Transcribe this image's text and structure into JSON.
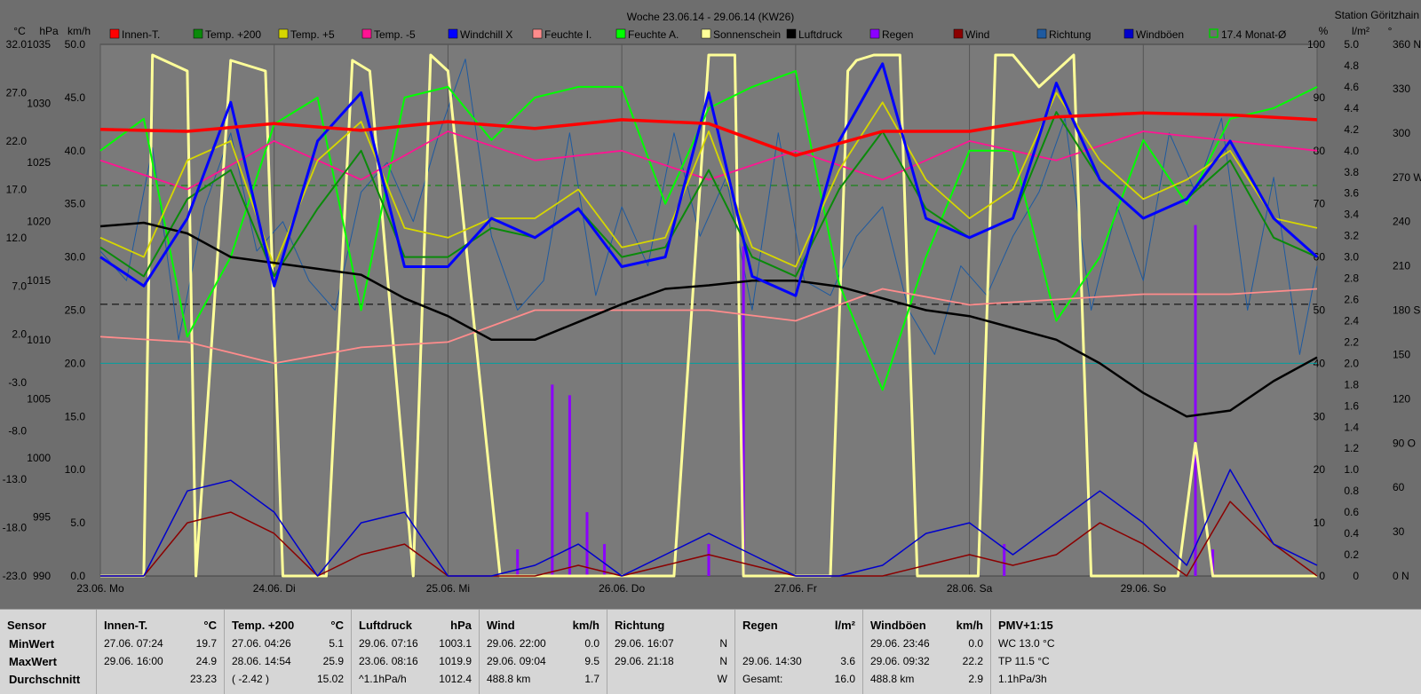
{
  "header": {
    "title": "Woche 23.06.14 - 29.06.14 (KW26)",
    "station": "Station Göritzhain"
  },
  "chart_data": {
    "type": "line",
    "title": "Woche 23.06.14 - 29.06.14 (KW26)",
    "x_ticks": [
      "23.06. Mo",
      "24.06. Di",
      "25.06. Mi",
      "26.06. Do",
      "27.06. Fr",
      "28.06. Sa",
      "29.06. So"
    ],
    "x_range": [
      0,
      7
    ],
    "left_axes": [
      {
        "unit": "°C",
        "ticks": [
          "32.0",
          "27.0",
          "22.0",
          "17.0",
          "12.0",
          "7.0",
          "2.0",
          "-3.0",
          "-8.0",
          "-13.0",
          "-18.0",
          "-23.0"
        ]
      },
      {
        "unit": "hPa",
        "ticks": [
          "1035",
          "1030",
          "1025",
          "1020",
          "1015",
          "1010",
          "1005",
          "1000",
          "995",
          "990"
        ]
      },
      {
        "unit": "km/h",
        "ticks": [
          "50.0",
          "45.0",
          "40.0",
          "35.0",
          "30.0",
          "25.0",
          "20.0",
          "15.0",
          "10.0",
          "5.0",
          "0.0"
        ]
      }
    ],
    "right_axes": [
      {
        "unit": "%",
        "ticks": [
          "100",
          "90",
          "80",
          "70",
          "60",
          "50",
          "40",
          "30",
          "20",
          "10",
          "0"
        ]
      },
      {
        "unit": "l/m²",
        "ticks": [
          "5.0",
          "4.8",
          "4.6",
          "4.4",
          "4.2",
          "4.0",
          "3.8",
          "3.6",
          "3.4",
          "3.2",
          "3.0",
          "2.8",
          "2.6",
          "2.4",
          "2.2",
          "2.0",
          "1.8",
          "1.6",
          "1.4",
          "1.2",
          "1.0",
          "0.8",
          "0.6",
          "0.4",
          "0.2",
          "0"
        ]
      },
      {
        "unit": "°",
        "ticks": [
          "360 N",
          "330",
          "300",
          "270 W",
          "240",
          "210",
          "180 S",
          "150",
          "120",
          "90 O",
          "60",
          "30",
          "0 N"
        ]
      }
    ],
    "legend": [
      {
        "name": "Innen-T.",
        "color": "#ff0000"
      },
      {
        "name": "Temp. +200",
        "color": "#0a8a0a"
      },
      {
        "name": "Temp. +5",
        "color": "#d6d600"
      },
      {
        "name": "Temp. -5",
        "color": "#ff1493"
      },
      {
        "name": "Windchill X",
        "color": "#0000ff"
      },
      {
        "name": "Feuchte I.",
        "color": "#ff8c8c"
      },
      {
        "name": "Feuchte A.",
        "color": "#00ff00"
      },
      {
        "name": "Sonnenschein",
        "color": "#ffff99"
      },
      {
        "name": "Luftdruck",
        "color": "#000000"
      },
      {
        "name": "Regen",
        "color": "#8b00ff"
      },
      {
        "name": "Wind",
        "color": "#8b0000"
      },
      {
        "name": "Richtung",
        "color": "#1e5aa0"
      },
      {
        "name": "Windböen",
        "color": "#0000cc"
      },
      {
        "name": "17.4 Monat-Ø",
        "color": "#00cc00"
      }
    ],
    "reference_lines": [
      {
        "label": "17.4 Monat-Ø",
        "axis": "°C",
        "value": 17.4,
        "color": "#008800"
      },
      {
        "axis": "hPa",
        "value": 1013.0,
        "color": "#000000"
      },
      {
        "axis": "km/h",
        "value": 20.0,
        "color": "#00a0a0"
      }
    ],
    "series": [
      {
        "name": "Innen-T.",
        "axis": "°C",
        "x": [
          0,
          0.5,
          1,
          1.5,
          2,
          2.5,
          3,
          3.5,
          4,
          4.5,
          5,
          5.5,
          6,
          6.5,
          7
        ],
        "values": [
          23.2,
          23.0,
          23.8,
          23.1,
          24.0,
          23.3,
          24.2,
          23.8,
          20.5,
          23.0,
          23.0,
          24.5,
          24.9,
          24.7,
          24.2
        ]
      },
      {
        "name": "Temp. +200",
        "axis": "°C",
        "x": [
          0,
          0.25,
          0.5,
          0.75,
          1,
          1.25,
          1.5,
          1.75,
          2,
          2.25,
          2.5,
          2.75,
          3,
          3.25,
          3.5,
          3.75,
          4,
          4.25,
          4.5,
          4.75,
          5,
          5.25,
          5.5,
          5.75,
          6,
          6.25,
          6.5,
          6.75,
          7
        ],
        "values": [
          11,
          8,
          16,
          19,
          8,
          15,
          21,
          10,
          10,
          13,
          12,
          15,
          10,
          11,
          19,
          10,
          8,
          17,
          23,
          15,
          12,
          14,
          25,
          18,
          14,
          16,
          20,
          12,
          10
        ]
      },
      {
        "name": "Temp. +5",
        "axis": "°C",
        "x": [
          0,
          0.25,
          0.5,
          0.75,
          1,
          1.25,
          1.5,
          1.75,
          2,
          2.25,
          2.5,
          2.75,
          3,
          3.25,
          3.5,
          3.75,
          4,
          4.25,
          4.5,
          4.75,
          5,
          5.25,
          5.5,
          5.75,
          6,
          6.25,
          6.5,
          6.75,
          7
        ],
        "values": [
          12,
          10,
          20,
          22,
          9,
          20,
          24,
          13,
          12,
          14,
          14,
          17,
          11,
          12,
          23,
          11,
          9,
          19,
          26,
          18,
          14,
          17,
          27,
          20,
          16,
          18,
          21,
          14,
          13
        ]
      },
      {
        "name": "Temp. -5",
        "axis": "°C",
        "x": [
          0,
          0.5,
          1,
          1.5,
          2,
          2.5,
          3,
          3.5,
          4,
          4.5,
          5,
          5.5,
          6,
          6.5,
          7
        ],
        "values": [
          20,
          17,
          22,
          18,
          23,
          20,
          21,
          18,
          21,
          18,
          22,
          20,
          23,
          22,
          21
        ]
      },
      {
        "name": "Windchill X",
        "axis": "°C",
        "x": [
          0,
          0.25,
          0.5,
          0.75,
          1,
          1.25,
          1.5,
          1.75,
          2,
          2.25,
          2.5,
          2.75,
          3,
          3.25,
          3.5,
          3.75,
          4,
          4.25,
          4.5,
          4.75,
          5,
          5.25,
          5.5,
          5.75,
          6,
          6.25,
          6.5,
          6.75,
          7
        ],
        "values": [
          10,
          7,
          14,
          26,
          7,
          22,
          27,
          9,
          9,
          14,
          12,
          15,
          9,
          10,
          27,
          8,
          6,
          22,
          30,
          14,
          12,
          14,
          28,
          18,
          14,
          16,
          22,
          14,
          10
        ]
      },
      {
        "name": "Feuchte I.",
        "axis": "%",
        "x": [
          0,
          0.5,
          1,
          1.5,
          2,
          2.5,
          3,
          3.5,
          4,
          4.5,
          5,
          5.5,
          6,
          6.5,
          7
        ],
        "values": [
          45,
          44,
          40,
          43,
          44,
          50,
          50,
          50,
          48,
          54,
          51,
          52,
          53,
          53,
          54
        ]
      },
      {
        "name": "Feuchte A.",
        "axis": "%",
        "x": [
          0,
          0.25,
          0.5,
          0.75,
          1,
          1.25,
          1.5,
          1.75,
          2,
          2.25,
          2.5,
          2.75,
          3,
          3.25,
          3.5,
          3.75,
          4,
          4.25,
          4.5,
          4.75,
          5,
          5.25,
          5.5,
          5.75,
          6,
          6.25,
          6.5,
          6.75,
          7
        ],
        "values": [
          80,
          86,
          45,
          60,
          85,
          90,
          50,
          90,
          92,
          82,
          90,
          92,
          92,
          70,
          88,
          92,
          95,
          55,
          35,
          60,
          80,
          80,
          48,
          60,
          82,
          70,
          86,
          88,
          92
        ]
      },
      {
        "name": "Sonnenschein",
        "axis": "%",
        "x": [
          0,
          0.25,
          0.3,
          0.5,
          0.55,
          0.75,
          0.95,
          1.05,
          1.3,
          1.45,
          1.55,
          1.8,
          1.9,
          2.0,
          2.3,
          2.45,
          2.5,
          3.2,
          3.3,
          3.5,
          3.65,
          3.7,
          4.2,
          4.3,
          4.35,
          4.45,
          4.6,
          4.7,
          5.0,
          5.05,
          5.15,
          5.25,
          5.4,
          5.6,
          5.7,
          6.2,
          6.3,
          6.4,
          7
        ],
        "values": [
          0,
          0,
          98,
          95,
          0,
          97,
          95,
          0,
          0,
          97,
          95,
          0,
          98,
          95,
          0,
          0,
          0,
          0,
          0,
          98,
          98,
          0,
          0,
          95,
          97,
          98,
          98,
          0,
          0,
          0,
          98,
          98,
          92,
          98,
          0,
          0,
          25,
          0,
          0
        ]
      },
      {
        "name": "Luftdruck",
        "axis": "hPa",
        "x": [
          0,
          0.25,
          0.5,
          0.75,
          1,
          1.25,
          1.5,
          1.75,
          2,
          2.25,
          2.5,
          2.75,
          3,
          3.25,
          3.5,
          3.75,
          4,
          4.25,
          4.5,
          4.75,
          5,
          5.25,
          5.5,
          5.75,
          6,
          6.25,
          6.5,
          6.75,
          7
        ],
        "values": [
          1019.6,
          1019.9,
          1019.0,
          1017.0,
          1016.5,
          1016.0,
          1015.5,
          1013.5,
          1012.0,
          1010.0,
          1010.0,
          1011.5,
          1013.0,
          1014.3,
          1014.6,
          1015.0,
          1015.0,
          1014.5,
          1013.5,
          1012.5,
          1012.0,
          1011.0,
          1010.0,
          1008.0,
          1005.5,
          1003.5,
          1004.0,
          1006.5,
          1008.5
        ]
      },
      {
        "name": "Regen",
        "axis": "l/m²",
        "x": [
          2.2,
          2.3,
          2.4,
          2.5,
          2.6,
          2.7,
          2.8,
          2.9,
          3.0,
          3.1,
          3.2,
          3.3,
          3.4,
          3.5,
          3.6,
          3.7,
          3.8,
          3.9,
          4.0,
          4.1,
          4.2,
          4.3,
          4.4,
          4.5,
          4.6,
          4.7,
          4.8,
          4.9,
          5.0,
          5.1,
          5.2,
          5.3,
          5.4,
          5.5,
          5.6,
          5.7,
          5.8,
          5.9,
          6.0,
          6.1,
          6.2,
          6.3,
          6.4,
          6.5
        ],
        "values": [
          0,
          0,
          0.25,
          0,
          1.8,
          1.7,
          0.6,
          0.3,
          0,
          0,
          0,
          0,
          0,
          0.3,
          0,
          3.1,
          0,
          0,
          0,
          0,
          0,
          0,
          0,
          0,
          0,
          0,
          0,
          0,
          0,
          0,
          0.3,
          0,
          0,
          0,
          0,
          0,
          0,
          0,
          0,
          0,
          0,
          3.3,
          0.25,
          0
        ]
      },
      {
        "name": "Wind",
        "axis": "km/h",
        "x": [
          0,
          0.25,
          0.5,
          0.75,
          1,
          1.25,
          1.5,
          1.75,
          2,
          2.25,
          2.5,
          2.75,
          3,
          3.25,
          3.5,
          3.75,
          4,
          4.25,
          4.5,
          4.75,
          5,
          5.25,
          5.5,
          5.75,
          6,
          6.25,
          6.5,
          6.75,
          7
        ],
        "values": [
          0,
          0,
          5,
          6,
          4,
          0,
          2,
          3,
          0,
          0,
          0,
          1,
          0,
          1,
          2,
          1,
          0,
          0,
          0,
          1,
          2,
          1,
          2,
          5,
          3,
          0,
          7,
          3,
          0
        ]
      },
      {
        "name": "Windböen",
        "axis": "km/h",
        "x": [
          0,
          0.25,
          0.5,
          0.75,
          1,
          1.25,
          1.5,
          1.75,
          2,
          2.25,
          2.5,
          2.75,
          3,
          3.25,
          3.5,
          3.75,
          4,
          4.25,
          4.5,
          4.75,
          5,
          5.25,
          5.5,
          5.75,
          6,
          6.25,
          6.5,
          6.75,
          7
        ],
        "values": [
          0,
          0,
          8,
          9,
          6,
          0,
          5,
          6,
          0,
          0,
          1,
          3,
          0,
          2,
          4,
          2,
          0,
          0,
          1,
          4,
          5,
          2,
          5,
          8,
          5,
          1,
          10,
          3,
          1
        ]
      },
      {
        "name": "Richtung",
        "axis": "°",
        "x": [
          0,
          0.15,
          0.3,
          0.45,
          0.6,
          0.75,
          0.9,
          1.05,
          1.2,
          1.35,
          1.5,
          1.65,
          1.8,
          1.95,
          2.1,
          2.25,
          2.4,
          2.55,
          2.7,
          2.85,
          3.0,
          3.15,
          3.3,
          3.45,
          3.6,
          3.75,
          3.9,
          4.05,
          4.2,
          4.35,
          4.5,
          4.65,
          4.8,
          4.95,
          5.1,
          5.25,
          5.4,
          5.55,
          5.7,
          5.85,
          6.0,
          6.15,
          6.3,
          6.45,
          6.6,
          6.75,
          6.9,
          7
        ],
        "values": [
          220,
          200,
          290,
          160,
          250,
          300,
          220,
          240,
          200,
          180,
          260,
          280,
          240,
          300,
          350,
          230,
          180,
          200,
          300,
          190,
          250,
          210,
          300,
          230,
          270,
          180,
          300,
          200,
          190,
          230,
          250,
          180,
          150,
          210,
          190,
          230,
          260,
          310,
          180,
          250,
          200,
          300,
          260,
          310,
          180,
          270,
          150,
          210
        ]
      }
    ]
  },
  "stats": {
    "sensor": {
      "head": "Sensor",
      "rows": [
        "MinWert",
        "MaxWert",
        "Durchschnitt"
      ]
    },
    "innen": {
      "head": "Innen-T.",
      "unit": "°C",
      "rows": [
        [
          "27.06.  07:24",
          "19.7"
        ],
        [
          "29.06.  16:00",
          "24.9"
        ],
        [
          "",
          "23.23"
        ]
      ]
    },
    "temp200": {
      "head": "Temp. +200",
      "unit": "°C",
      "rows": [
        [
          "27.06.  04:26",
          "5.1"
        ],
        [
          "28.06.  14:54",
          "25.9"
        ],
        [
          "( -2.42 )",
          "15.02"
        ]
      ]
    },
    "luftdruck": {
      "head": "Luftdruck",
      "unit": "hPa",
      "rows": [
        [
          "29.06.  07:16",
          "1003.1"
        ],
        [
          "23.06.  08:16",
          "1019.9"
        ],
        [
          "^1.1hPa/h",
          "1012.4"
        ]
      ]
    },
    "wind": {
      "head": "Wind",
      "unit": "km/h",
      "rows": [
        [
          "29.06.  22:00",
          "0.0"
        ],
        [
          "29.06.  09:04",
          "9.5"
        ],
        [
          "488.8 km",
          "1.7"
        ]
      ]
    },
    "richtung": {
      "head": "Richtung",
      "rows": [
        [
          "29.06.  16:07",
          "N"
        ],
        [
          "29.06.  21:18",
          "N"
        ],
        [
          "",
          "W"
        ]
      ]
    },
    "regen": {
      "head": "Regen",
      "unit": "l/m²",
      "rows": [
        [
          "",
          ""
        ],
        [
          "29.06.  14:30",
          "3.6"
        ],
        [
          "Gesamt:",
          "16.0"
        ]
      ]
    },
    "boeen": {
      "head": "Windböen",
      "unit": "km/h",
      "rows": [
        [
          "29.06.  23:46",
          "0.0"
        ],
        [
          "29.06.  09:32",
          "22.2"
        ],
        [
          "488.8 km",
          "2.9"
        ]
      ]
    },
    "pmv": {
      "head": "PMV+1:15",
      "rows": [
        "WC 13.0 °C",
        "TP 11.5 °C",
        "1.1hPa/3h"
      ]
    }
  }
}
